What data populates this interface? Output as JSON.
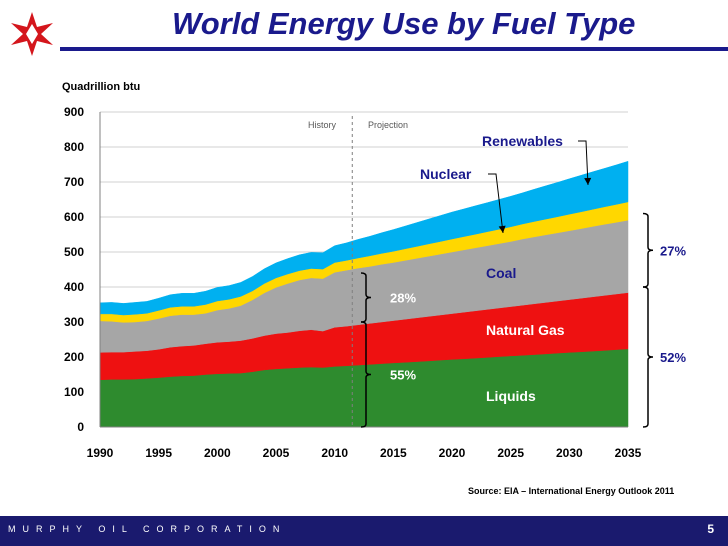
{
  "slide": {
    "title": "World Energy Use by Fuel Type",
    "company": "MURPHY OIL CORPORATION",
    "page_number": "5",
    "brand_color": "#1a1a8c"
  },
  "chart_data": {
    "type": "area",
    "stacked": true,
    "title": "World Energy Use by Fuel Type",
    "ylabel": "Quadrillion btu",
    "xlabel": "",
    "ylim": [
      0,
      900
    ],
    "yticks": [
      "0",
      "100",
      "200",
      "300",
      "400",
      "500",
      "600",
      "700",
      "800",
      "900"
    ],
    "xlim": [
      1990,
      2035
    ],
    "xticks": [
      "1990",
      "1995",
      "2000",
      "2005",
      "2010",
      "2015",
      "2020",
      "2025",
      "2030",
      "2035"
    ],
    "grid": true,
    "x": [
      1990,
      1991,
      1992,
      1993,
      1994,
      1995,
      1996,
      1997,
      1998,
      1999,
      2000,
      2001,
      2002,
      2003,
      2004,
      2005,
      2006,
      2007,
      2008,
      2009,
      2010,
      2011,
      2012,
      2013,
      2014,
      2015,
      2016,
      2017,
      2018,
      2019,
      2020,
      2021,
      2022,
      2023,
      2024,
      2025,
      2026,
      2027,
      2028,
      2029,
      2030,
      2031,
      2032,
      2033,
      2034,
      2035
    ],
    "series": [
      {
        "name": "Liquids",
        "color": "#2e8b2e",
        "values": [
          135,
          136,
          136,
          137,
          139,
          141,
          144,
          146,
          147,
          150,
          152,
          153,
          154,
          158,
          163,
          166,
          168,
          170,
          171,
          170,
          173,
          175,
          177,
          179,
          181,
          183,
          185,
          187,
          189,
          191,
          193,
          195,
          197,
          199,
          201,
          203,
          205,
          207,
          209,
          211,
          213,
          215,
          217,
          219,
          221,
          223
        ]
      },
      {
        "name": "Natural Gas",
        "color": "#ee1111",
        "values": [
          78,
          78,
          78,
          79,
          79,
          81,
          84,
          85,
          86,
          88,
          90,
          91,
          93,
          95,
          98,
          101,
          102,
          105,
          107,
          104,
          112,
          113,
          115,
          117,
          119,
          121,
          123,
          125,
          127,
          129,
          131,
          133,
          135,
          137,
          139,
          141,
          143,
          145,
          147,
          149,
          151,
          153,
          155,
          157,
          159,
          161
        ]
      },
      {
        "name": "Coal",
        "color": "#a6a6a6",
        "values": [
          90,
          88,
          85,
          84,
          85,
          88,
          90,
          90,
          88,
          87,
          92,
          95,
          100,
          110,
          122,
          132,
          140,
          145,
          148,
          150,
          157,
          160,
          162,
          163,
          165,
          166,
          168,
          170,
          172,
          174,
          176,
          178,
          180,
          182,
          184,
          186,
          189,
          191,
          193,
          195,
          197,
          199,
          201,
          203,
          205,
          207
        ]
      },
      {
        "name": "Nuclear",
        "color": "#ffd700",
        "values": [
          20,
          21,
          21,
          22,
          22,
          23,
          24,
          24,
          24,
          25,
          26,
          26,
          26,
          26,
          27,
          27,
          27,
          27,
          27,
          27,
          28,
          28,
          29,
          30,
          31,
          32,
          33,
          34,
          35,
          36,
          37,
          38,
          39,
          40,
          41,
          42,
          43,
          44,
          45,
          46,
          47,
          48,
          49,
          50,
          51,
          52
        ]
      },
      {
        "name": "Renewables",
        "color": "#00b0f0",
        "values": [
          32,
          33,
          33,
          34,
          34,
          35,
          36,
          37,
          37,
          38,
          39,
          39,
          40,
          41,
          42,
          43,
          44,
          45,
          46,
          47,
          48,
          50,
          53,
          56,
          59,
          62,
          65,
          68,
          71,
          74,
          77,
          79,
          81,
          83,
          85,
          87,
          89,
          92,
          95,
          98,
          101,
          104,
          107,
          110,
          113,
          116
        ]
      }
    ],
    "history_label": "History",
    "projection_label": "Projection",
    "divider_year": 2011.5,
    "callouts": [
      "Renewables",
      "Nuclear"
    ],
    "in_chart_labels": [
      "Coal",
      "Natural Gas",
      "Liquids"
    ],
    "shares_2011": [
      {
        "label": "28%",
        "text_color": "#ffffff",
        "bottom": 300,
        "top": 440
      },
      {
        "label": "55%",
        "text_color": "#ffffff",
        "bottom": 0,
        "top": 300
      }
    ],
    "shares_2035": [
      {
        "label": "27%",
        "text_color": "#1a1a8c",
        "bottom": 400,
        "top": 610
      },
      {
        "label": "52%",
        "text_color": "#1a1a8c",
        "bottom": 0,
        "top": 400
      }
    ],
    "source": "Source: EIA – International Energy Outlook 2011"
  }
}
